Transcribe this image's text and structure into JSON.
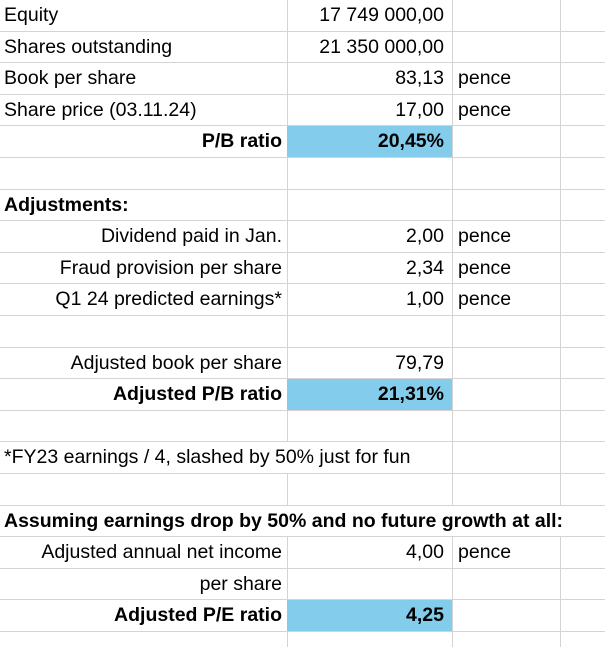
{
  "rows": {
    "equity": {
      "label": "Equity",
      "value": "17 749 000,00"
    },
    "shares": {
      "label": "Shares outstanding",
      "value": "21 350 000,00"
    },
    "book": {
      "label": "Book per share",
      "value": "83,13",
      "unit": "pence"
    },
    "price": {
      "label": "Share price (03.11.24)",
      "value": "17,00",
      "unit": "pence"
    },
    "pb": {
      "label": "P/B ratio",
      "value": "20,45%"
    },
    "adj_header": {
      "label": "Adjustments:"
    },
    "dividend": {
      "label": "Dividend paid in Jan.",
      "value": "2,00",
      "unit": "pence"
    },
    "fraud": {
      "label": "Fraud provision per share",
      "value": "2,34",
      "unit": "pence"
    },
    "q1": {
      "label": "Q1 24 predicted earnings*",
      "value": "1,00",
      "unit": "pence"
    },
    "adj_book": {
      "label": "Adjusted book per share",
      "value": "79,79"
    },
    "adj_pb": {
      "label": "Adjusted P/B ratio",
      "value": "21,31%"
    },
    "footnote": {
      "label": "*FY23 earnings / 4, slashed by 50% just for fun"
    },
    "assume": {
      "label": "Assuming earnings drop by 50% and no future growth at all:"
    },
    "net_income": {
      "label": "Adjusted annual net income",
      "value": "4,00",
      "unit": "pence"
    },
    "per_share": {
      "label": "per share"
    },
    "adj_pe": {
      "label": "Adjusted P/E ratio",
      "value": "4,25"
    }
  },
  "colors": {
    "highlight": "#83cceb",
    "gridline": "#d4d4d4"
  }
}
